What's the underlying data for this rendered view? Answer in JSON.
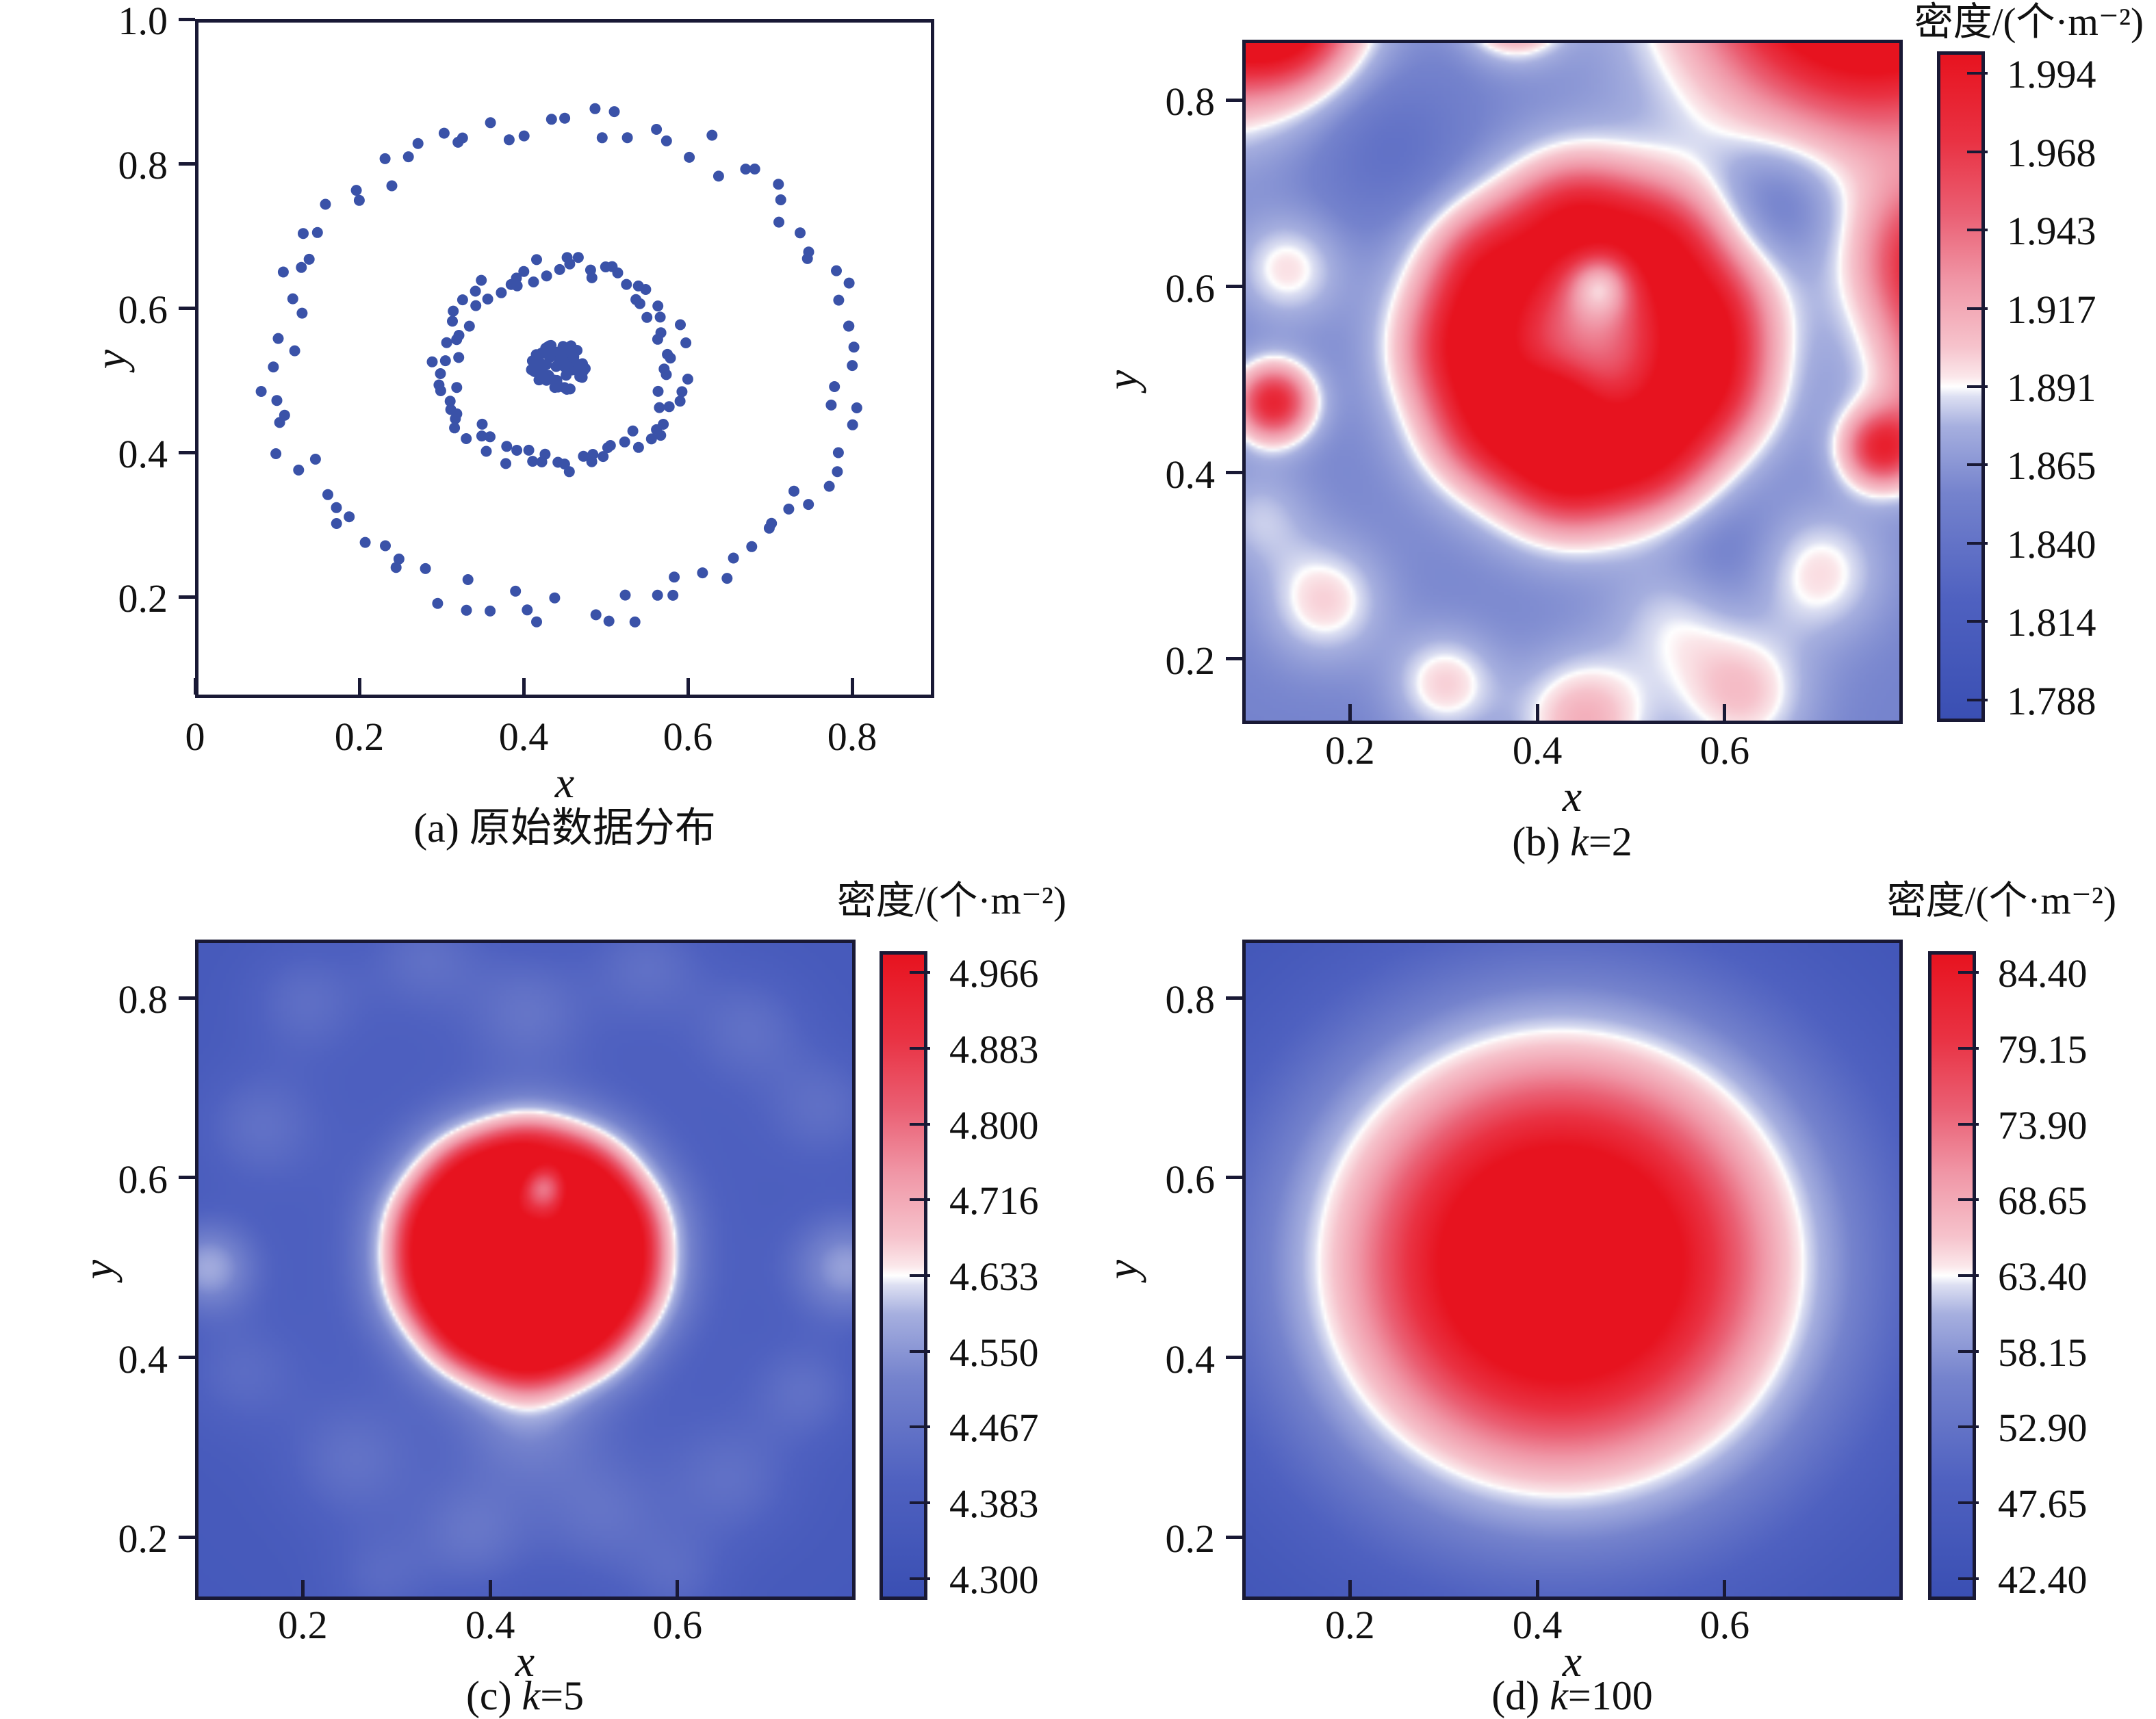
{
  "figure": {
    "background": "#ffffff",
    "frame_color": "#191935",
    "text_color": "#111111",
    "dot_color": "#3a52a8",
    "colormap": [
      {
        "t": 0.0,
        "c": "#3a4fb3"
      },
      {
        "t": 0.18,
        "c": "#4f61c0"
      },
      {
        "t": 0.34,
        "c": "#7583cd"
      },
      {
        "t": 0.44,
        "c": "#a6afdf"
      },
      {
        "t": 0.485,
        "c": "#dcdff2"
      },
      {
        "t": 0.5,
        "c": "#ffffff"
      },
      {
        "t": 0.515,
        "c": "#fbe7ea"
      },
      {
        "t": 0.56,
        "c": "#f6c3cc"
      },
      {
        "t": 0.66,
        "c": "#f096a6"
      },
      {
        "t": 0.76,
        "c": "#ea5f73"
      },
      {
        "t": 0.87,
        "c": "#e93243"
      },
      {
        "t": 1.0,
        "c": "#e7131f"
      }
    ]
  },
  "panels": {
    "a": {
      "caption": {
        "pre": "(a) ",
        "var": "",
        "val": "原始数据分布"
      },
      "xlabel": "x",
      "ylabel": "y",
      "x_ticks": [
        "0",
        "0.2",
        "0.4",
        "0.6",
        "0.8"
      ],
      "y_ticks": [
        "1.0",
        "0.8",
        "0.6",
        "0.4",
        "0.2"
      ]
    },
    "b": {
      "caption": {
        "pre": "(b) ",
        "var": "k",
        "val": "=2"
      },
      "xlabel": "x",
      "ylabel": "y",
      "colorbar_title": "密度/(个·m⁻²)",
      "colorbar_ticks": [
        "1.994",
        "1.968",
        "1.943",
        "1.917",
        "1.891",
        "1.865",
        "1.840",
        "1.814",
        "1.788"
      ],
      "x_ticks": [
        "0.2",
        "0.4",
        "0.6"
      ],
      "y_ticks": [
        "0.8",
        "0.6",
        "0.4",
        "0.2"
      ]
    },
    "c": {
      "caption": {
        "pre": "(c) ",
        "var": "k",
        "val": "=5"
      },
      "xlabel": "x",
      "ylabel": "y",
      "colorbar_title": "密度/(个·m⁻²)",
      "colorbar_ticks": [
        "4.966",
        "4.883",
        "4.800",
        "4.716",
        "4.633",
        "4.550",
        "4.467",
        "4.383",
        "4.300"
      ],
      "x_ticks": [
        "0.2",
        "0.4",
        "0.6"
      ],
      "y_ticks": [
        "0.8",
        "0.6",
        "0.4",
        "0.2"
      ]
    },
    "d": {
      "caption": {
        "pre": "(d) ",
        "var": "k",
        "val": "=100"
      },
      "xlabel": "x",
      "ylabel": "y",
      "colorbar_title": "密度/(个·m⁻²)",
      "colorbar_ticks": [
        "84.40",
        "79.15",
        "73.90",
        "68.65",
        "63.40",
        "58.15",
        "52.90",
        "47.65",
        "42.40"
      ],
      "x_ticks": [
        "0.2",
        "0.4",
        "0.6"
      ],
      "y_ticks": [
        "0.8",
        "0.6",
        "0.4",
        "0.2"
      ]
    }
  },
  "chart_data": [
    {
      "id": "a",
      "type": "scatter",
      "title": "(a) 原始数据分布",
      "xlabel": "x",
      "ylabel": "y",
      "xlim": [
        0,
        0.9
      ],
      "ylim": [
        0.06,
        1.0
      ],
      "x_ticks": [
        0,
        0.2,
        0.4,
        0.6,
        0.8
      ],
      "y_ticks": [
        1.0,
        0.8,
        0.6,
        0.4,
        0.2
      ],
      "description": "Three concentric clusters of blue points centered near (0.44, 0.52): outer ring radius ~0.35, middle ring radius ~0.14, dense central blob radius ~0.035",
      "clusters": [
        {
          "name": "outer-ring",
          "n": 96,
          "cx": 0.45,
          "cy": 0.52,
          "rx": 0.352,
          "ry": 0.345,
          "r_jitter": 0.07,
          "seed": 11
        },
        {
          "name": "middle-ring",
          "n": 90,
          "cx": 0.445,
          "cy": 0.52,
          "rx": 0.142,
          "ry": 0.138,
          "r_jitter": 0.12,
          "seed": 23
        },
        {
          "name": "center-cluster",
          "n": 72,
          "cx": 0.443,
          "cy": 0.518,
          "rx": 0.034,
          "ry": 0.034,
          "disc": true,
          "seed": 37
        }
      ]
    },
    {
      "id": "b",
      "type": "heatmap",
      "title": "(b) k=2",
      "xlabel": "x",
      "ylabel": "y",
      "zlabel": "密度/(个·m⁻²)",
      "xlim": [
        0.085,
        0.79
      ],
      "ylim": [
        0.13,
        0.865
      ],
      "x_ticks": [
        0.2,
        0.4,
        0.6
      ],
      "y_ticks": [
        0.8,
        0.6,
        0.4,
        0.2
      ],
      "zlim": [
        1.788,
        1.994
      ],
      "z_ticks": [
        1.994,
        1.968,
        1.943,
        1.917,
        1.891,
        1.865,
        1.84,
        1.814,
        1.788
      ],
      "base": 0.34,
      "blobs": [
        [
          0.02,
          0.96,
          0.1,
          1.1
        ],
        [
          0.13,
          0.89,
          0.05,
          0.45
        ],
        [
          0.375,
          0.91,
          0.035,
          0.55
        ],
        [
          0.76,
          0.97,
          0.13,
          1.15
        ],
        [
          0.83,
          0.63,
          0.06,
          0.55
        ],
        [
          0.885,
          0.5,
          0.07,
          0.65
        ],
        [
          0.77,
          0.425,
          0.03,
          0.5
        ],
        [
          0.115,
          0.475,
          0.03,
          0.58
        ],
        [
          0.44,
          0.67,
          0.05,
          0.48
        ],
        [
          0.53,
          0.645,
          0.05,
          0.45
        ],
        [
          0.585,
          0.57,
          0.05,
          0.42
        ],
        [
          0.58,
          0.49,
          0.05,
          0.45
        ],
        [
          0.52,
          0.42,
          0.05,
          0.48
        ],
        [
          0.43,
          0.4,
          0.05,
          0.5
        ],
        [
          0.35,
          0.45,
          0.05,
          0.45
        ],
        [
          0.32,
          0.535,
          0.05,
          0.45
        ],
        [
          0.35,
          0.62,
          0.05,
          0.45
        ],
        [
          0.455,
          0.54,
          0.11,
          0.26
        ],
        [
          0.42,
          0.47,
          0.035,
          0.3
        ],
        [
          0.468,
          0.607,
          0.028,
          -0.38
        ],
        [
          0.17,
          0.26,
          0.045,
          0.2
        ],
        [
          0.3,
          0.17,
          0.04,
          0.2
        ],
        [
          0.45,
          0.13,
          0.05,
          0.26
        ],
        [
          0.62,
          0.16,
          0.05,
          0.22
        ],
        [
          0.7,
          0.29,
          0.05,
          0.2
        ],
        [
          0.55,
          0.24,
          0.05,
          0.15
        ],
        [
          0.13,
          0.62,
          0.04,
          0.18
        ],
        [
          0.1,
          0.35,
          0.04,
          0.12
        ],
        [
          0.24,
          0.75,
          0.06,
          -0.1
        ],
        [
          0.66,
          0.7,
          0.05,
          -0.12
        ],
        [
          0.6,
          0.3,
          0.06,
          -0.08
        ]
      ]
    },
    {
      "id": "c",
      "type": "heatmap",
      "title": "(c) k=5",
      "xlabel": "x",
      "ylabel": "y",
      "zlabel": "密度/(个·m⁻²)",
      "xlim": [
        0.085,
        0.79
      ],
      "ylim": [
        0.13,
        0.865
      ],
      "x_ticks": [
        0.2,
        0.4,
        0.6
      ],
      "y_ticks": [
        0.8,
        0.6,
        0.4,
        0.2
      ],
      "zlim": [
        4.3,
        4.966
      ],
      "z_ticks": [
        4.966,
        4.883,
        4.8,
        4.716,
        4.633,
        4.55,
        4.467,
        4.383,
        4.3
      ],
      "base": 0.1,
      "blobs": [
        [
          0.44,
          0.52,
          0.2,
          0.12
        ],
        [
          0.44,
          0.62,
          0.04,
          0.6
        ],
        [
          0.502,
          0.6,
          0.04,
          0.58
        ],
        [
          0.54,
          0.547,
          0.04,
          0.6
        ],
        [
          0.54,
          0.483,
          0.04,
          0.58
        ],
        [
          0.502,
          0.43,
          0.04,
          0.6
        ],
        [
          0.44,
          0.41,
          0.04,
          0.62
        ],
        [
          0.378,
          0.43,
          0.04,
          0.6
        ],
        [
          0.34,
          0.483,
          0.04,
          0.58
        ],
        [
          0.34,
          0.547,
          0.04,
          0.6
        ],
        [
          0.378,
          0.6,
          0.04,
          0.58
        ],
        [
          0.437,
          0.503,
          0.032,
          0.8
        ],
        [
          0.44,
          0.515,
          0.07,
          0.28
        ],
        [
          0.458,
          0.592,
          0.02,
          -0.5
        ],
        [
          0.095,
          0.5,
          0.035,
          0.3
        ],
        [
          0.785,
          0.5,
          0.04,
          0.28
        ],
        [
          0.2,
          0.8,
          0.045,
          0.12
        ],
        [
          0.33,
          0.85,
          0.045,
          0.12
        ],
        [
          0.44,
          0.79,
          0.045,
          0.12
        ],
        [
          0.57,
          0.84,
          0.045,
          0.12
        ],
        [
          0.68,
          0.77,
          0.045,
          0.12
        ],
        [
          0.15,
          0.66,
          0.045,
          0.12
        ],
        [
          0.76,
          0.68,
          0.045,
          0.12
        ],
        [
          0.13,
          0.38,
          0.045,
          0.1
        ],
        [
          0.25,
          0.28,
          0.05,
          0.12
        ],
        [
          0.38,
          0.2,
          0.045,
          0.14
        ],
        [
          0.52,
          0.22,
          0.05,
          0.12
        ],
        [
          0.66,
          0.26,
          0.05,
          0.12
        ],
        [
          0.44,
          0.32,
          0.05,
          0.15
        ],
        [
          0.74,
          0.36,
          0.04,
          0.12
        ],
        [
          0.6,
          0.15,
          0.04,
          0.1
        ],
        [
          0.28,
          0.15,
          0.04,
          0.1
        ]
      ]
    },
    {
      "id": "d",
      "type": "heatmap",
      "title": "(d) k=100",
      "xlabel": "x",
      "ylabel": "y",
      "zlabel": "密度/(个·m⁻²)",
      "xlim": [
        0.085,
        0.79
      ],
      "ylim": [
        0.13,
        0.865
      ],
      "x_ticks": [
        0.2,
        0.4,
        0.6
      ],
      "y_ticks": [
        0.8,
        0.6,
        0.4,
        0.2
      ],
      "zlim": [
        42.4,
        84.4
      ],
      "z_ticks": [
        84.4,
        79.15,
        73.9,
        68.65,
        63.4,
        58.15,
        52.9,
        47.65,
        42.4
      ],
      "base": 0.05,
      "blobs": [
        [
          0.425,
          0.505,
          0.185,
          1.22
        ]
      ]
    }
  ]
}
